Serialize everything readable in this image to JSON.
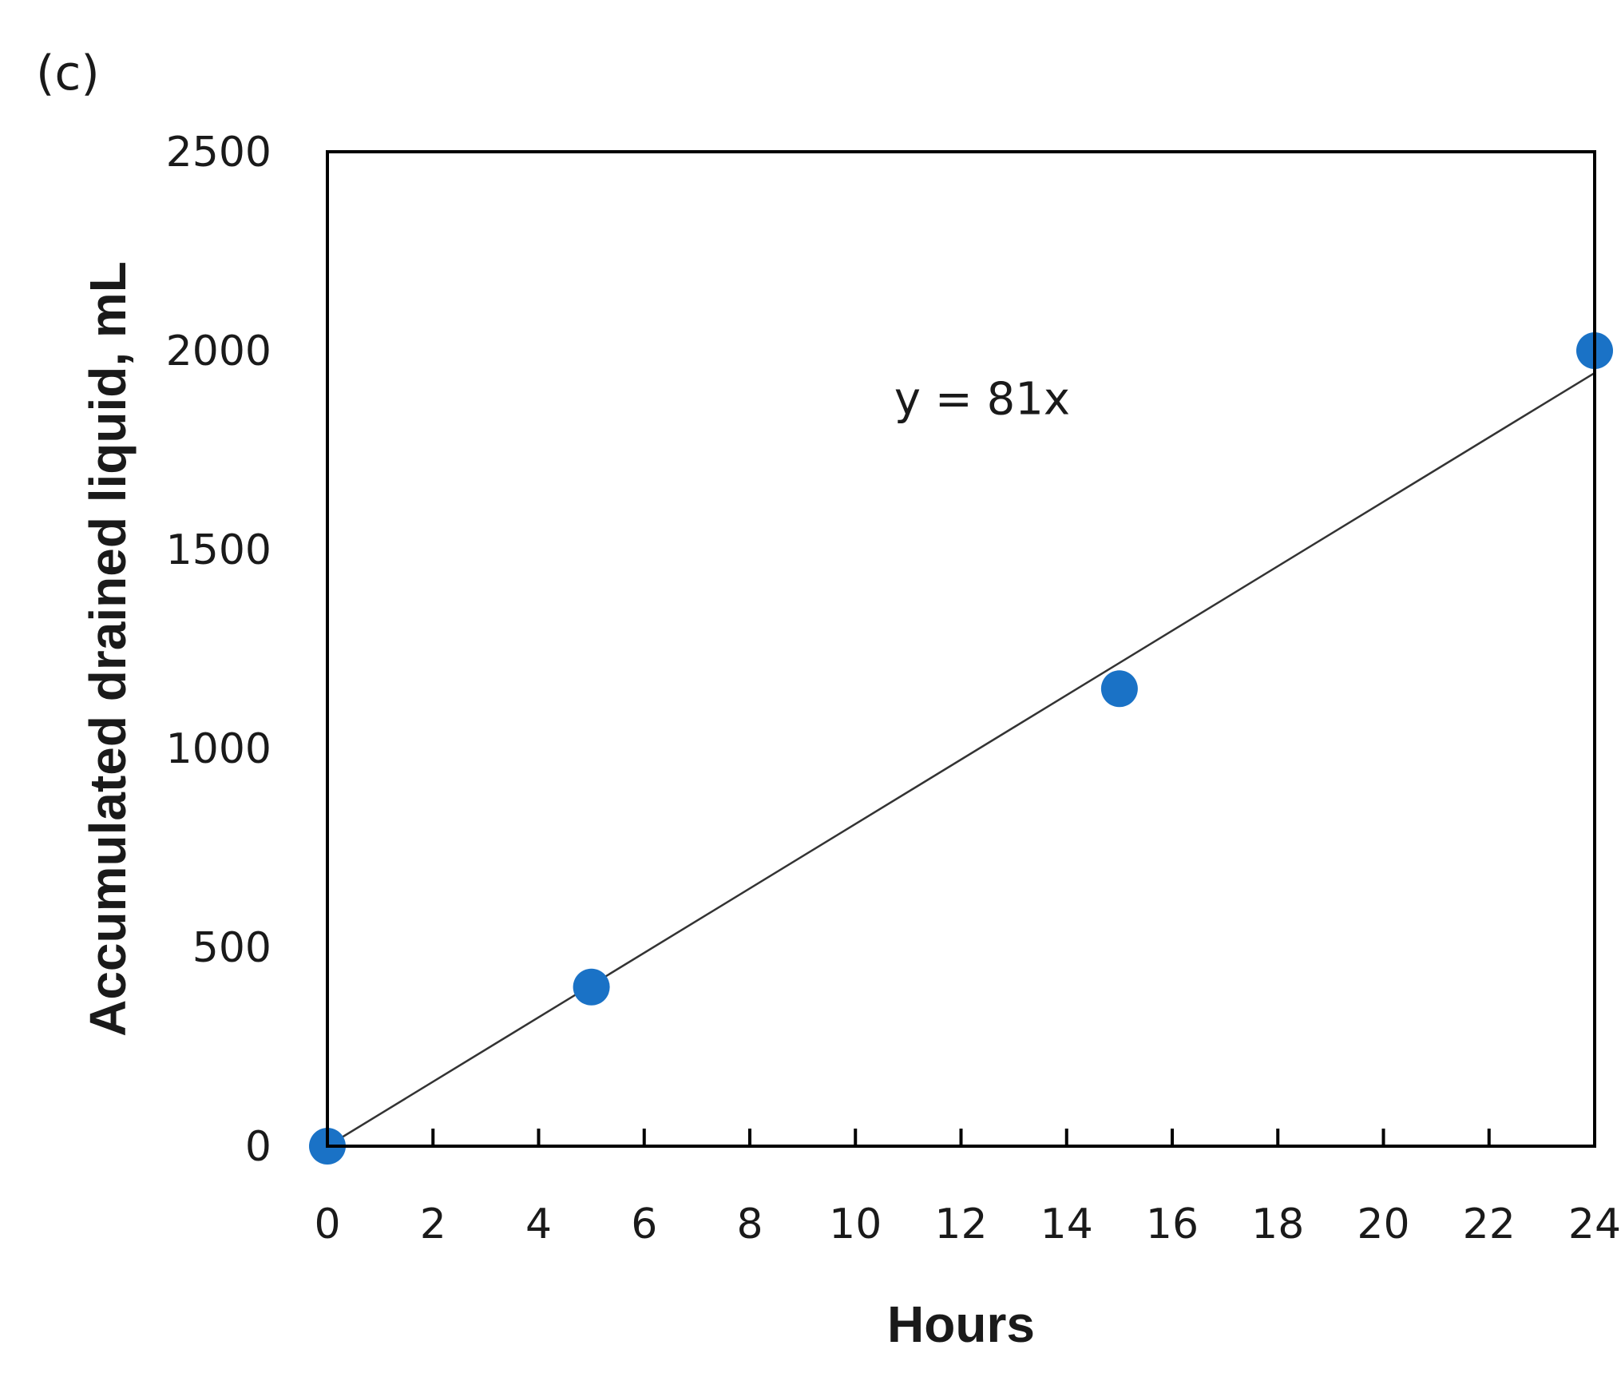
{
  "panel_label": "(c)",
  "chart_data": {
    "type": "scatter",
    "title": "",
    "xlabel": "Hours",
    "ylabel": "Accumulated drained liquid, mL",
    "xlim": [
      0,
      24
    ],
    "ylim": [
      0,
      2500
    ],
    "x_ticks": [
      "0",
      "2",
      "4",
      "6",
      "8",
      "10",
      "12",
      "14",
      "16",
      "18",
      "20",
      "22",
      "24"
    ],
    "y_ticks": [
      "0",
      "500",
      "1000",
      "1500",
      "2000",
      "2500"
    ],
    "grid": false,
    "legend": "none",
    "series": [
      {
        "x": [
          0,
          5,
          15,
          24
        ],
        "y": [
          0,
          400,
          1150,
          2000
        ],
        "color": "#1a72c6",
        "marker": "circle"
      }
    ],
    "trendline": {
      "slope": 81,
      "intercept": 0,
      "x_range": [
        0,
        24
      ],
      "color": "#333333",
      "label": "y = 81x"
    }
  }
}
